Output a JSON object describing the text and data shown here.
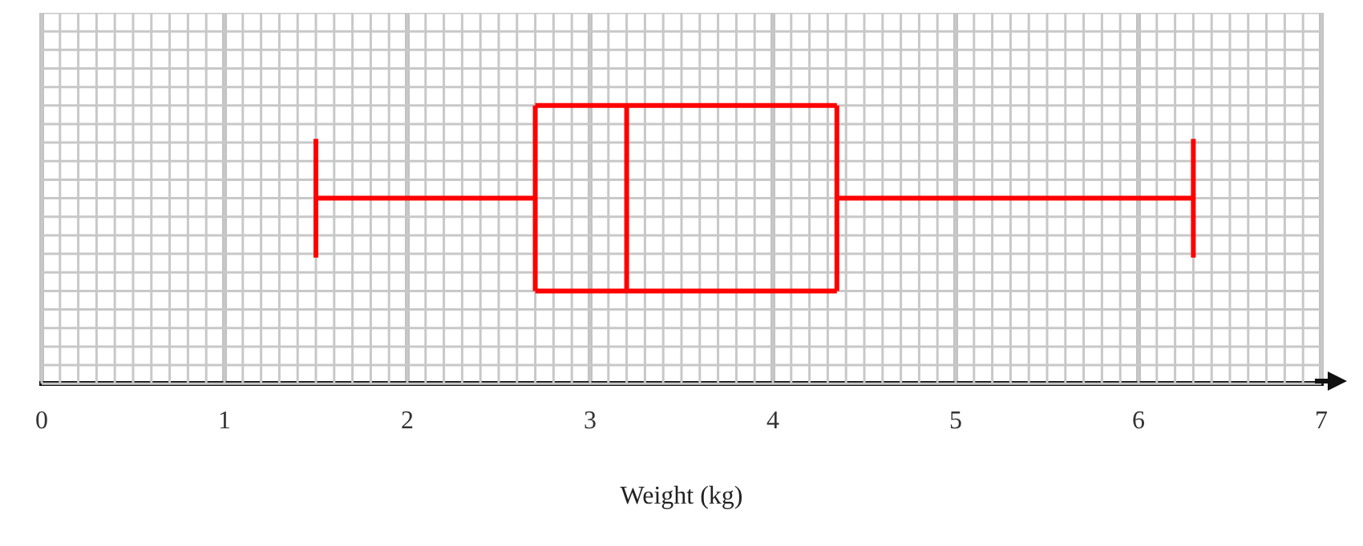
{
  "chart_data": {
    "type": "box",
    "orientation": "horizontal",
    "categories": [
      null
    ],
    "xlabel": "Weight (kg)",
    "xlim": [
      0,
      7
    ],
    "xticks": [
      0,
      1,
      2,
      3,
      4,
      5,
      6,
      7
    ],
    "grid": true,
    "legend": false,
    "series": [
      {
        "color": "#ff0000",
        "boxes": [
          {
            "low": 1.5,
            "q1": 2.7,
            "median": 3.2,
            "q3": 4.35,
            "high": 6.3
          }
        ]
      }
    ]
  }
}
